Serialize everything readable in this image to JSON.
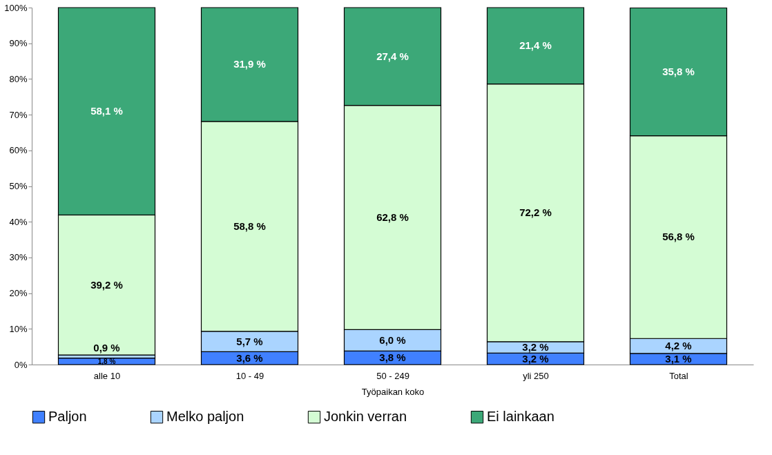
{
  "chart_data": {
    "type": "bar",
    "stacked": true,
    "xlabel": "Työpaikan koko",
    "categories": [
      "alle 10",
      "10 - 49",
      "50 - 249",
      "yli 250",
      "Total"
    ],
    "series": [
      {
        "name": "Paljon",
        "color": "#4080ff",
        "values": [
          1.8,
          3.6,
          3.8,
          3.2,
          3.1
        ],
        "value_labels": [
          "1,8 %",
          "3,6 %",
          "3,8 %",
          "3,2 %",
          "3,1 %"
        ]
      },
      {
        "name": "Melko paljon",
        "color": "#aad4ff",
        "values": [
          0.9,
          5.7,
          6.0,
          3.2,
          4.2
        ],
        "value_labels": [
          "0,9 %",
          "5,7 %",
          "6,0 %",
          "3,2 %",
          "4,2 %"
        ]
      },
      {
        "name": "Jonkin verran",
        "color": "#d4fcd4",
        "values": [
          39.2,
          58.8,
          62.8,
          72.2,
          56.8
        ],
        "value_labels": [
          "39,2 %",
          "58,8 %",
          "62,8 %",
          "72,2 %",
          "56,8 %"
        ]
      },
      {
        "name": "Ei lainkaan",
        "color": "#3ca878",
        "values": [
          58.1,
          31.9,
          27.4,
          21.4,
          35.8
        ],
        "value_labels": [
          "58,1 %",
          "31,9 %",
          "27,4 %",
          "21,4 %",
          "35,8 %"
        ]
      }
    ],
    "ylim": [
      0,
      100
    ],
    "yticks": [
      {
        "value": 0,
        "label": "0%"
      },
      {
        "value": 10,
        "label": "10%"
      },
      {
        "value": 20,
        "label": "20%"
      },
      {
        "value": 30,
        "label": "30%"
      },
      {
        "value": 40,
        "label": "40%"
      },
      {
        "value": 50,
        "label": "50%"
      },
      {
        "value": 60,
        "label": "60%"
      },
      {
        "value": 70,
        "label": "70%"
      },
      {
        "value": 80,
        "label": "80%"
      },
      {
        "value": 90,
        "label": "90%"
      },
      {
        "value": 100,
        "label": "100%"
      }
    ],
    "grid": false,
    "legend": "bottom"
  }
}
